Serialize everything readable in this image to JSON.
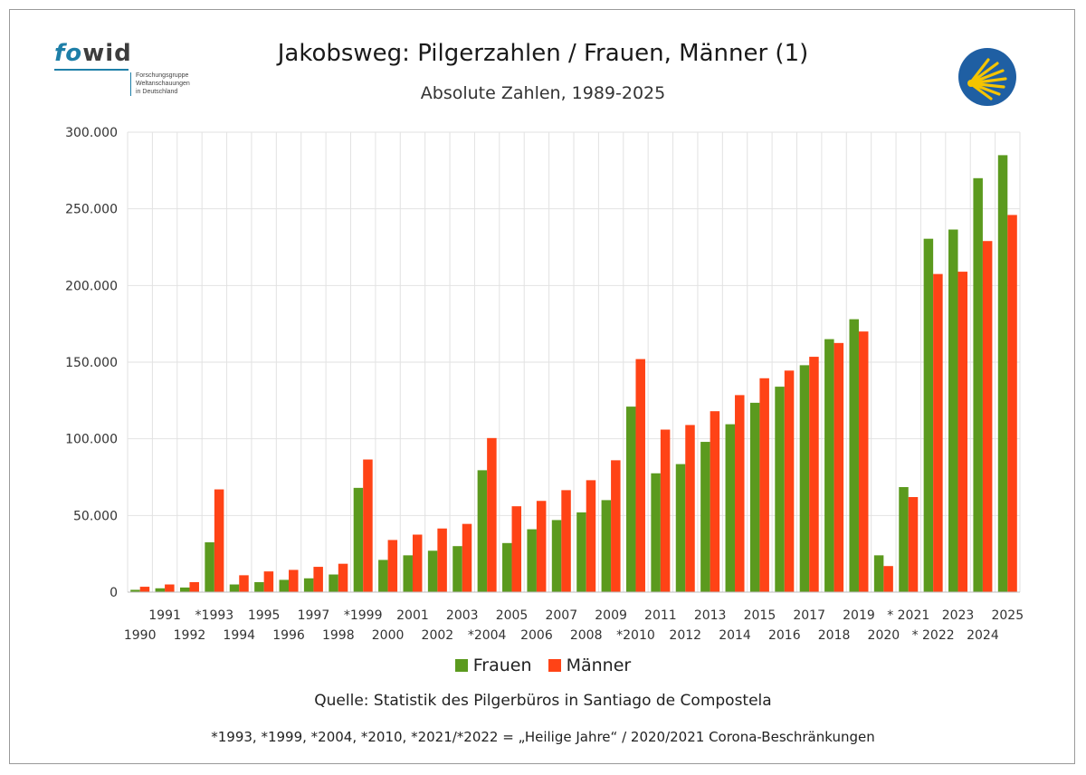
{
  "header": {
    "title": "Jakobsweg: Pilgerzahlen / Frauen, Männer (1)",
    "subtitle": "Absolute Zahlen, 1989-2025"
  },
  "logo": {
    "text_fo": "fo",
    "text_wid": "wid",
    "subtext": [
      "Forschungsgruppe",
      "Weltanschauungen",
      "in Deutschland"
    ],
    "color_primary": "#1e7fa8",
    "color_secondary": "#3d3d3d"
  },
  "shell_icon": {
    "name": "scallop-shell-icon",
    "bg": "#1f5fa3",
    "fg": "#f5c400"
  },
  "chart_data": {
    "type": "bar",
    "categories": [
      "1990",
      "1991",
      "1992",
      "*1993",
      "1994",
      "1995",
      "1996",
      "1997",
      "1998",
      "*1999",
      "2000",
      "2001",
      "2002",
      "2003",
      "*2004",
      "2005",
      "2006",
      "2007",
      "2008",
      "2009",
      "*2010",
      "2011",
      "2012",
      "2013",
      "2014",
      "2015",
      "2016",
      "2017",
      "2018",
      "2019",
      "2020",
      "* 2021",
      "* 2022",
      "2023",
      "2024",
      "2025"
    ],
    "series": [
      {
        "name": "Frauen",
        "color": "#5b9a1e",
        "values": [
          1500,
          2500,
          3000,
          32500,
          5000,
          6500,
          8000,
          9000,
          11500,
          68000,
          21000,
          24000,
          27000,
          30000,
          79500,
          32000,
          41000,
          47000,
          52000,
          60000,
          121000,
          77500,
          83500,
          98000,
          109500,
          123500,
          134000,
          148000,
          165000,
          178000,
          24000,
          68500,
          230500,
          236500,
          270000,
          285000
        ]
      },
      {
        "name": "Männer",
        "color": "#ff4316",
        "values": [
          3500,
          5000,
          6500,
          67000,
          11000,
          13500,
          14500,
          16500,
          18500,
          86500,
          34000,
          37500,
          41500,
          44500,
          100500,
          56000,
          59500,
          66500,
          73000,
          86000,
          152000,
          106000,
          109000,
          118000,
          128500,
          139500,
          144500,
          153500,
          162500,
          170000,
          17000,
          62000,
          207500,
          209000,
          229000,
          246000
        ]
      }
    ],
    "ylim": [
      0,
      300000
    ],
    "yticks": [
      0,
      50000,
      100000,
      150000,
      200000,
      250000,
      300000
    ],
    "ytick_labels": [
      "0",
      "50.000",
      "100.000",
      "150.000",
      "200.000",
      "250.000",
      "300.000"
    ],
    "grid": true,
    "legend_position": "bottom"
  },
  "footer": {
    "source": "Quelle: Statistik des Pilgerbüros in Santiago de Compostela",
    "note": "*1993, *1999, *2004, *2010, *2021/*2022 = „Heilige Jahre“ / 2020/2021 Corona-Beschränkungen"
  }
}
